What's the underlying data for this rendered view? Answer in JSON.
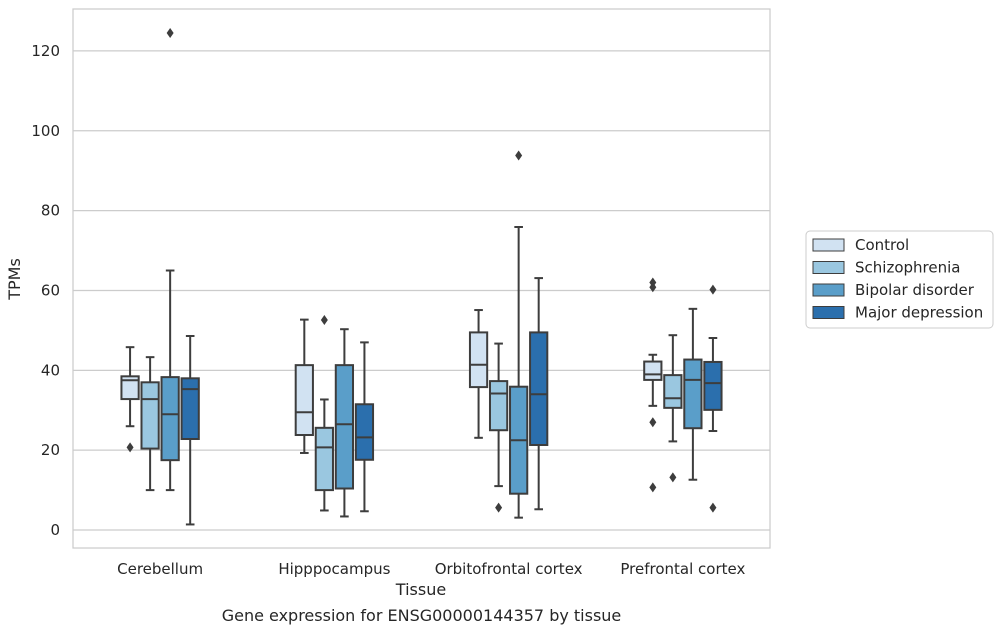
{
  "caption": "Gene expression for ENSG00000144357 by tissue",
  "chart_data": {
    "type": "box",
    "title": "",
    "xlabel": "Tissue",
    "ylabel": "TPMs",
    "ylim": [
      -4.5,
      130.5
    ],
    "yticks": [
      0,
      20,
      40,
      60,
      80,
      100,
      120
    ],
    "grid": true,
    "legend_position": "outside-right",
    "categories": [
      "Cerebellum",
      "Hipppocampus",
      "Orbitofrontal cortex",
      "Prefrontal cortex"
    ],
    "series": [
      {
        "name": "Control",
        "color": "#d1e2f2",
        "boxes": [
          {
            "whisker_low": 26,
            "q1": 32.8,
            "median": 37.5,
            "q3": 38.5,
            "whisker_high": 45.8,
            "outliers": [
              20.7
            ]
          },
          {
            "whisker_low": 19.3,
            "q1": 23.8,
            "median": 29.5,
            "q3": 41.3,
            "whisker_high": 52.7,
            "outliers": []
          },
          {
            "whisker_low": 23.1,
            "q1": 35.8,
            "median": 41.4,
            "q3": 49.5,
            "whisker_high": 55.1,
            "outliers": []
          },
          {
            "whisker_low": 31.1,
            "q1": 37.6,
            "median": 39.0,
            "q3": 42.2,
            "whisker_high": 43.9,
            "outliers": [
              62.0,
              60.8,
              27.0,
              10.7
            ]
          }
        ]
      },
      {
        "name": "Schizophrenia",
        "color": "#9ac7e0",
        "boxes": [
          {
            "whisker_low": 10.0,
            "q1": 20.4,
            "median": 32.8,
            "q3": 37.0,
            "whisker_high": 43.3,
            "outliers": []
          },
          {
            "whisker_low": 4.9,
            "q1": 10.0,
            "median": 20.7,
            "q3": 25.6,
            "whisker_high": 32.7,
            "outliers": [
              52.6
            ]
          },
          {
            "whisker_low": 11.0,
            "q1": 25.0,
            "median": 34.2,
            "q3": 37.3,
            "whisker_high": 46.7,
            "outliers": [
              5.6
            ]
          },
          {
            "whisker_low": 22.2,
            "q1": 30.6,
            "median": 33.0,
            "q3": 38.8,
            "whisker_high": 48.8,
            "outliers": [
              13.2
            ]
          }
        ]
      },
      {
        "name": "Bipolar disorder",
        "color": "#5a9ec9",
        "boxes": [
          {
            "whisker_low": 10.0,
            "q1": 17.5,
            "median": 29.0,
            "q3": 38.3,
            "whisker_high": 65.0,
            "outliers": [
              124.5
            ]
          },
          {
            "whisker_low": 3.4,
            "q1": 10.4,
            "median": 26.5,
            "q3": 41.3,
            "whisker_high": 50.3,
            "outliers": []
          },
          {
            "whisker_low": 3.1,
            "q1": 9.1,
            "median": 22.5,
            "q3": 35.9,
            "whisker_high": 75.9,
            "outliers": [
              93.8
            ]
          },
          {
            "whisker_low": 12.6,
            "q1": 25.5,
            "median": 37.6,
            "q3": 42.7,
            "whisker_high": 55.4,
            "outliers": []
          }
        ]
      },
      {
        "name": "Major depression",
        "color": "#2b6fad",
        "boxes": [
          {
            "whisker_low": 1.4,
            "q1": 22.8,
            "median": 35.3,
            "q3": 38.0,
            "whisker_high": 48.6,
            "outliers": []
          },
          {
            "whisker_low": 4.7,
            "q1": 17.6,
            "median": 23.2,
            "q3": 31.5,
            "whisker_high": 47.0,
            "outliers": []
          },
          {
            "whisker_low": 5.2,
            "q1": 21.3,
            "median": 34.0,
            "q3": 49.5,
            "whisker_high": 63.1,
            "outliers": []
          },
          {
            "whisker_low": 24.8,
            "q1": 30.1,
            "median": 36.8,
            "q3": 42.1,
            "whisker_high": 48.1,
            "outliers": [
              60.2,
              5.6
            ]
          }
        ]
      }
    ]
  }
}
